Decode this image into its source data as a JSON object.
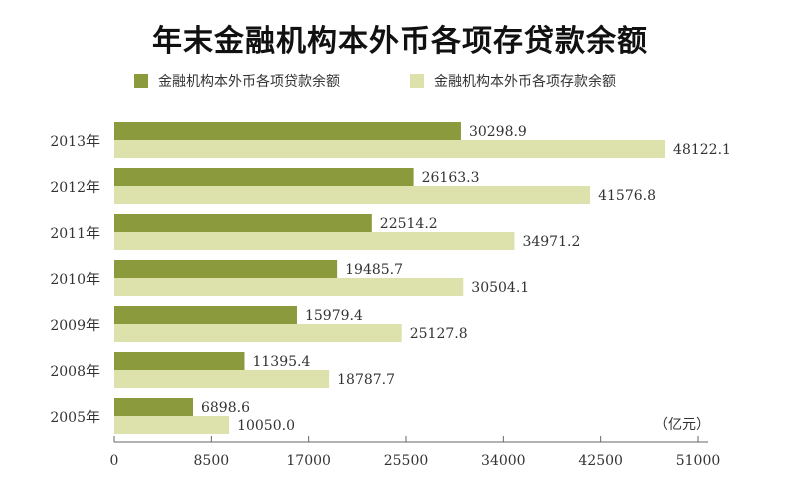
{
  "chart_data": {
    "type": "bar",
    "orientation": "horizontal",
    "title": "年末金融机构本外币各项存贷款余额",
    "unit_label": "（亿元）",
    "categories": [
      "2013年",
      "2012年",
      "2011年",
      "2010年",
      "2009年",
      "2008年",
      "2005年"
    ],
    "series": [
      {
        "name": "金融机构本外币各项贷款余额",
        "color": "#8a9a3c",
        "values": [
          30298.9,
          26163.3,
          22514.2,
          19485.7,
          15979.4,
          11395.4,
          6898.6
        ],
        "labels": [
          "30298.9",
          "26163.3",
          "22514.2",
          "19485.7",
          "15979.4",
          "11395.4",
          "6898.6"
        ]
      },
      {
        "name": "金融机构本外币各项存款余额",
        "color": "#dde2ad",
        "values": [
          48122.1,
          41576.8,
          34971.2,
          30504.1,
          25127.8,
          18787.7,
          10050.0
        ],
        "labels": [
          "48122.1",
          "41576.8",
          "34971.2",
          "30504.1",
          "25127.8",
          "18787.7",
          "10050.0"
        ]
      }
    ],
    "xlim": [
      0,
      51000
    ],
    "xticks": [
      "0",
      "8500",
      "17000",
      "25500",
      "34000",
      "42500",
      "51000"
    ],
    "grid": false,
    "legend_position": "top"
  }
}
